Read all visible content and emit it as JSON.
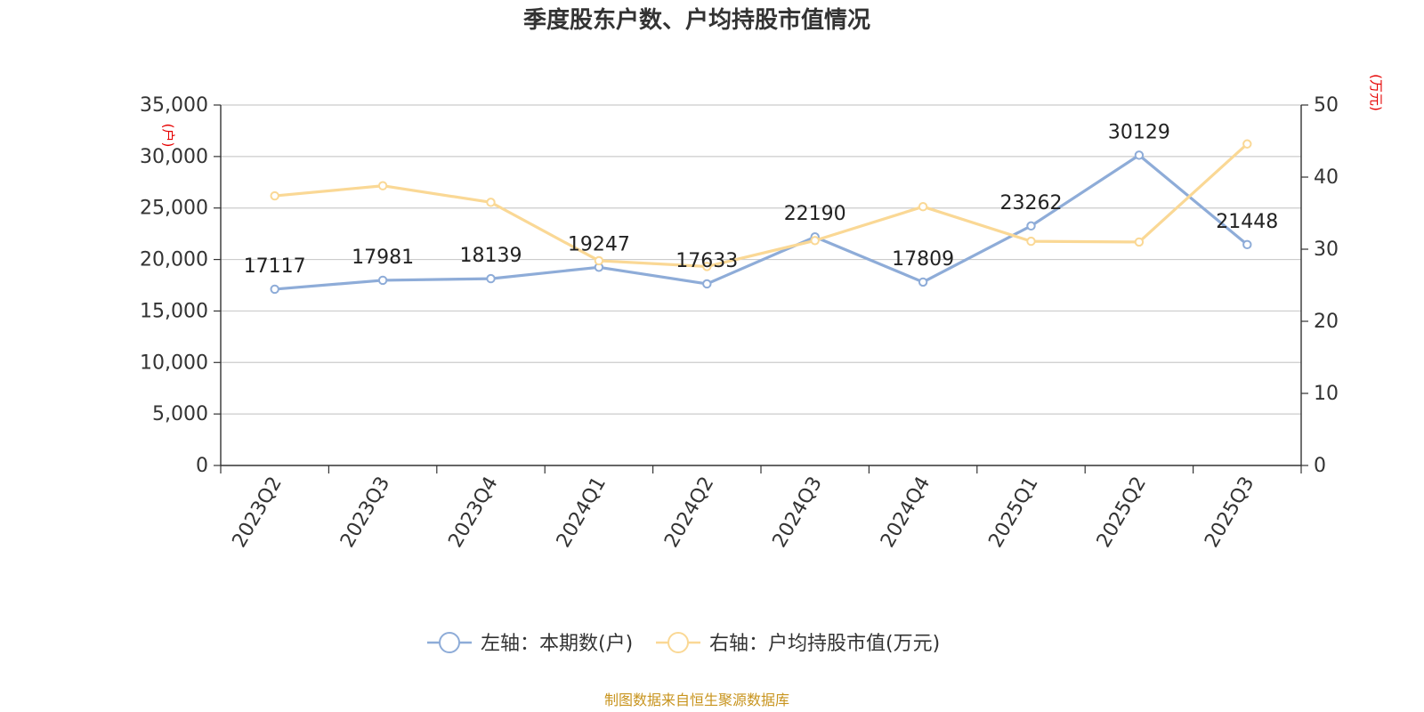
{
  "chart_data": {
    "type": "line",
    "title": "季度股东户数、户均持股市值情况",
    "categories": [
      "2023Q2",
      "2023Q3",
      "2023Q4",
      "2024Q1",
      "2024Q2",
      "2024Q3",
      "2024Q4",
      "2025Q1",
      "2025Q2",
      "2025Q3"
    ],
    "left_axis": {
      "unit": "(户)",
      "min": 0,
      "max": 35000,
      "step": 5000,
      "ticks": [
        "0",
        "5,000",
        "10,000",
        "15,000",
        "20,000",
        "25,000",
        "30,000",
        "35,000"
      ]
    },
    "right_axis": {
      "unit": "(万元)",
      "min": 0,
      "max": 50,
      "step": 10,
      "ticks": [
        "0",
        "10",
        "20",
        "30",
        "40",
        "50"
      ]
    },
    "series": [
      {
        "name": "左轴：本期数(户)",
        "axis": "left",
        "color": "#8eacd8",
        "values": [
          17117,
          17981,
          18139,
          19247,
          17633,
          22190,
          17809,
          23262,
          30129,
          21448
        ],
        "labels": [
          "17117",
          "17981",
          "18139",
          "19247",
          "17633",
          "22190",
          "17809",
          "23262",
          "30129",
          "21448"
        ]
      },
      {
        "name": "右轴：户均持股市值(万元)",
        "axis": "right",
        "color": "#fad895",
        "values": [
          37.4,
          38.8,
          36.5,
          28.4,
          27.6,
          31.2,
          35.9,
          31.1,
          31.0,
          44.6
        ]
      }
    ],
    "grid": true,
    "legend_position": "bottom-center"
  },
  "footer": {
    "source": "制图数据来自恒生聚源数据库"
  }
}
